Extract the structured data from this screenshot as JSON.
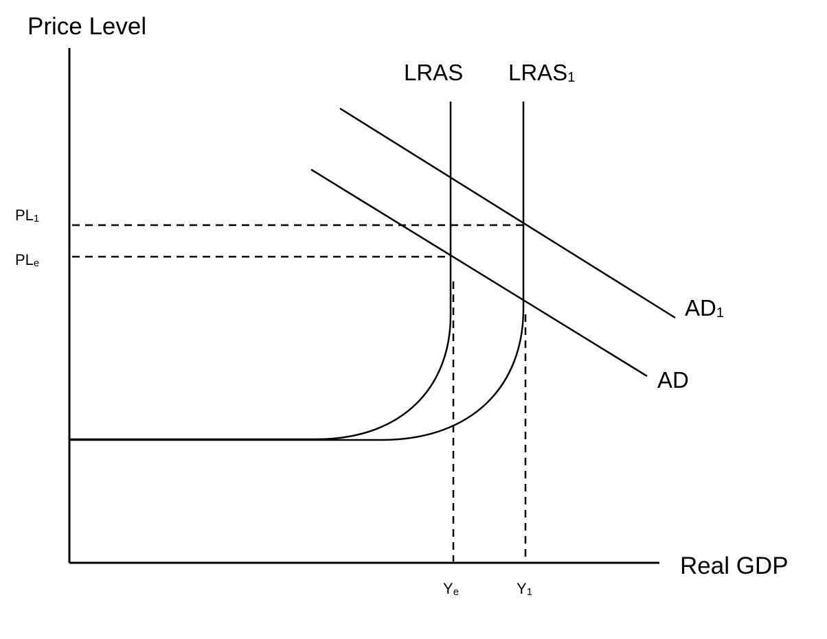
{
  "diagram": {
    "y_axis_label": "Price Level",
    "x_axis_label": "Real GDP",
    "curves": {
      "lras": {
        "base": "LRAS",
        "sub": ""
      },
      "lras1": {
        "base": "LRAS",
        "sub": "1"
      },
      "ad": {
        "base": "AD",
        "sub": ""
      },
      "ad1": {
        "base": "AD",
        "sub": "1"
      }
    },
    "y_ticks": {
      "pl1": {
        "base": "PL",
        "sub": "1"
      },
      "ple": {
        "base": "PL",
        "sub": "e"
      }
    },
    "x_ticks": {
      "ye": {
        "base": "Y",
        "sub": "e"
      },
      "y1": {
        "base": "Y",
        "sub": "1"
      }
    }
  }
}
